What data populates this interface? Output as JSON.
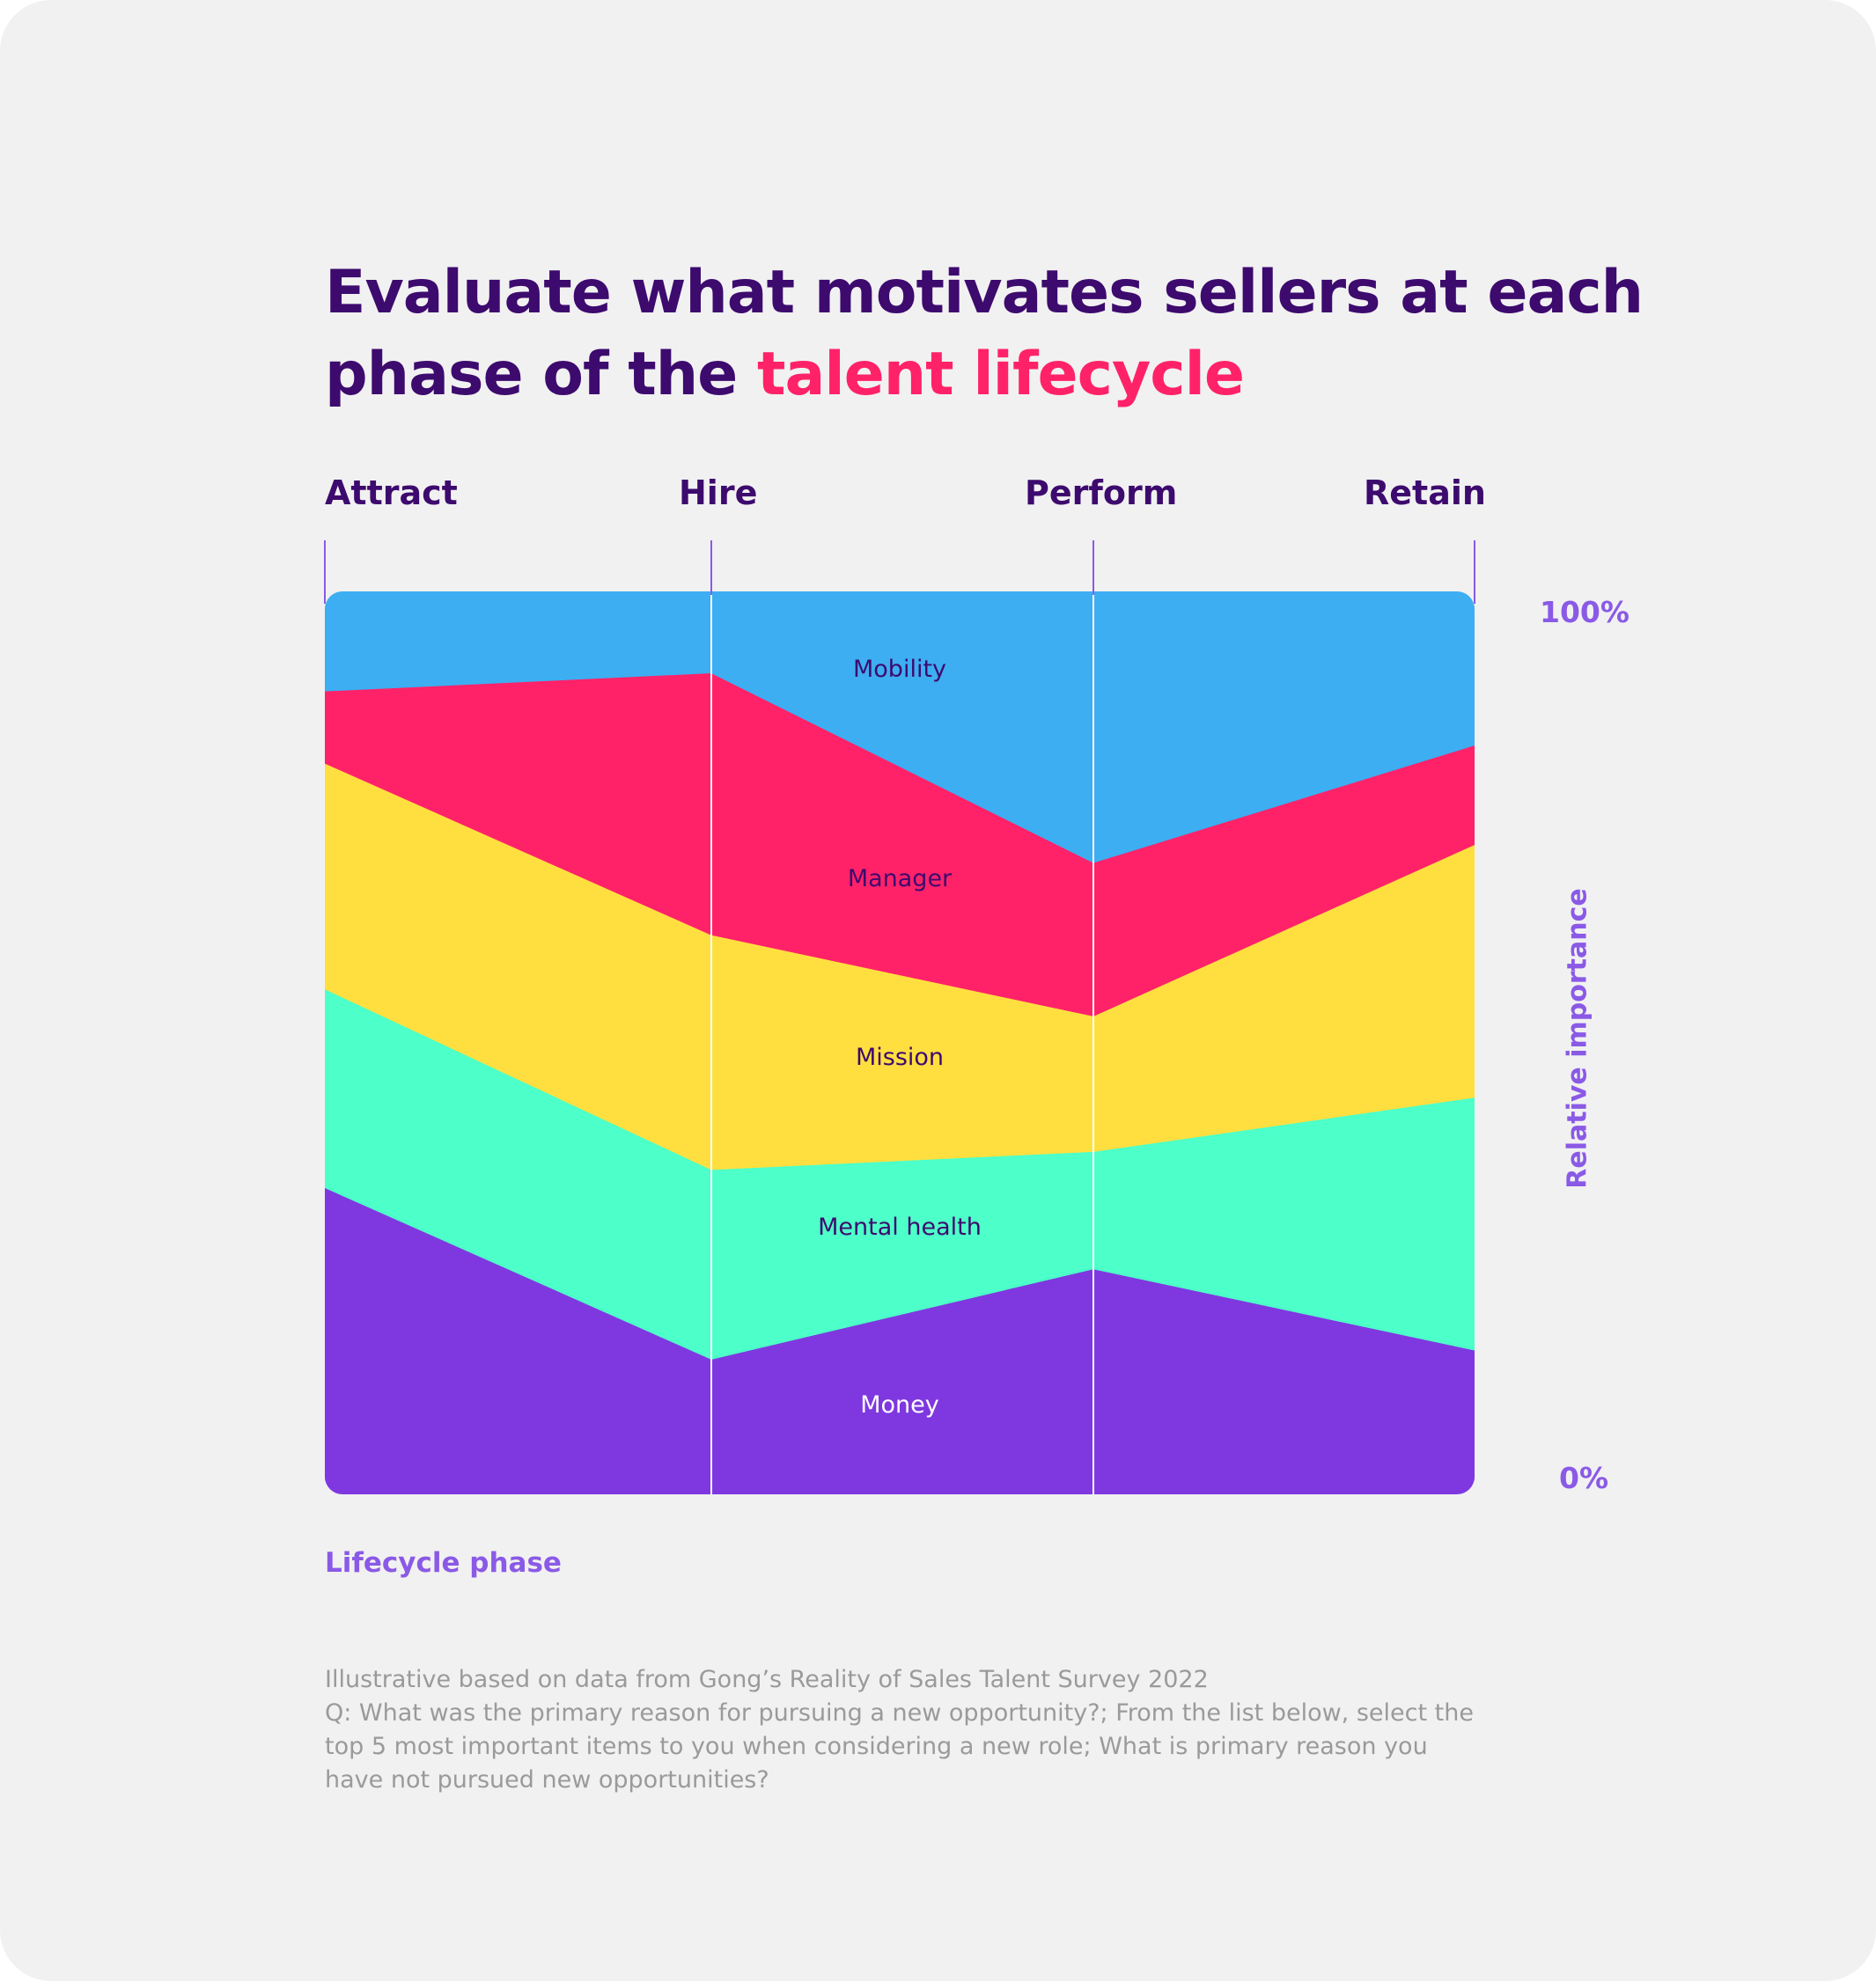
{
  "title": {
    "part1": "Evaluate what motivates sellers at each phase of the ",
    "highlight": "talent lifecycle"
  },
  "colors": {
    "background": "#f1f1f1",
    "title": "#3d0a6e",
    "accent": "#ff2269",
    "axis": "#8a5ae6",
    "note": "#9a9a9a"
  },
  "chart_data": {
    "type": "area",
    "stacked": true,
    "normalized": true,
    "x": [
      "Attract",
      "Hire",
      "Perform",
      "Retain"
    ],
    "xlabel": "Lifecycle phase",
    "ylabel": "Relative importance",
    "ylim": [
      0,
      100
    ],
    "yticks": [
      "0%",
      "100%"
    ],
    "series": [
      {
        "name": "Money",
        "color": "#7f38e0",
        "label_color": "#ffffff",
        "values": [
          34,
          15,
          25,
          16
        ]
      },
      {
        "name": "Mental health",
        "color": "#4dffc8",
        "label_color": "#3d0a6e",
        "values": [
          22,
          21,
          13,
          28
        ]
      },
      {
        "name": "Mission",
        "color": "#ffdf40",
        "label_color": "#3d0a6e",
        "values": [
          25,
          26,
          15,
          28
        ]
      },
      {
        "name": "Manager",
        "color": "#ff2269",
        "label_color": "#3d0a6e",
        "values": [
          8,
          29,
          17,
          11
        ]
      },
      {
        "name": "Mobility",
        "color": "#3daef2",
        "label_color": "#3d0a6e",
        "values": [
          11,
          9,
          30,
          17
        ]
      }
    ]
  },
  "footnote": {
    "line1": "Illustrative based on data from Gong’s Reality of Sales Talent Survey 2022",
    "line2": "Q: What was the primary reason for pursuing a new opportunity?; From the list below, select the top 5 most important items to you when considering a new role; What is primary reason you have not pursued new opportunities?"
  }
}
